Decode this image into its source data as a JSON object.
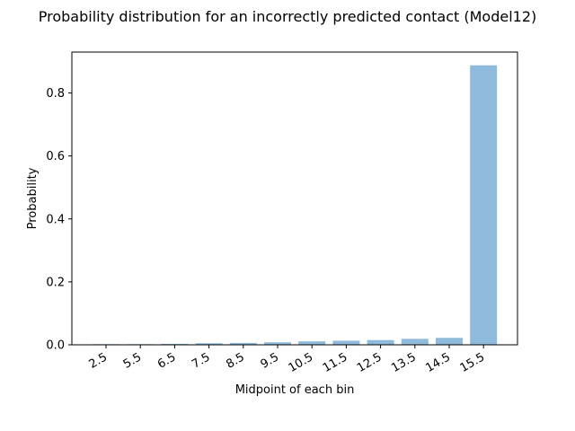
{
  "chart_data": {
    "type": "bar",
    "title": "Probability distribution for an incorrectly predicted contact (Model12)",
    "xlabel": "Midpoint of each bin",
    "ylabel": "Probability",
    "categories": [
      "2.5",
      "5.5",
      "6.5",
      "7.5",
      "8.5",
      "9.5",
      "10.5",
      "11.5",
      "12.5",
      "13.5",
      "14.5",
      "15.5"
    ],
    "values": [
      0.002,
      0.002,
      0.003,
      0.005,
      0.006,
      0.008,
      0.011,
      0.013,
      0.015,
      0.019,
      0.022,
      0.888
    ],
    "ylim": [
      0,
      0.93
    ],
    "yticks": [
      "0.0",
      "0.2",
      "0.4",
      "0.6",
      "0.8"
    ],
    "bar_color": "#8ebbdb",
    "grid": false,
    "legend": "none"
  }
}
